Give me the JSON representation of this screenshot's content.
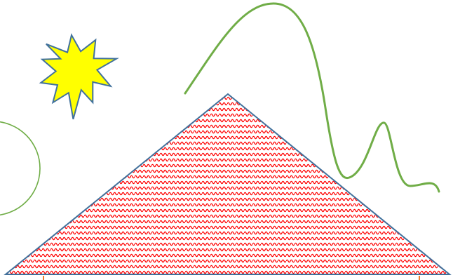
{
  "canvas": {
    "background": "#ffffff"
  },
  "shapes": {
    "sun": {
      "icon": "sun-starburst",
      "fill": "#ffff00",
      "stroke": "#41719c"
    },
    "circle": {
      "stroke": "#70ad47"
    },
    "triangle": {
      "fill_base": "#ffffff",
      "pattern_color": "#ff0000",
      "pattern": "wave",
      "stroke": "#41719c"
    },
    "curve": {
      "stroke": "#70ad47"
    },
    "markers": {
      "stroke": "#ed7d31"
    }
  }
}
